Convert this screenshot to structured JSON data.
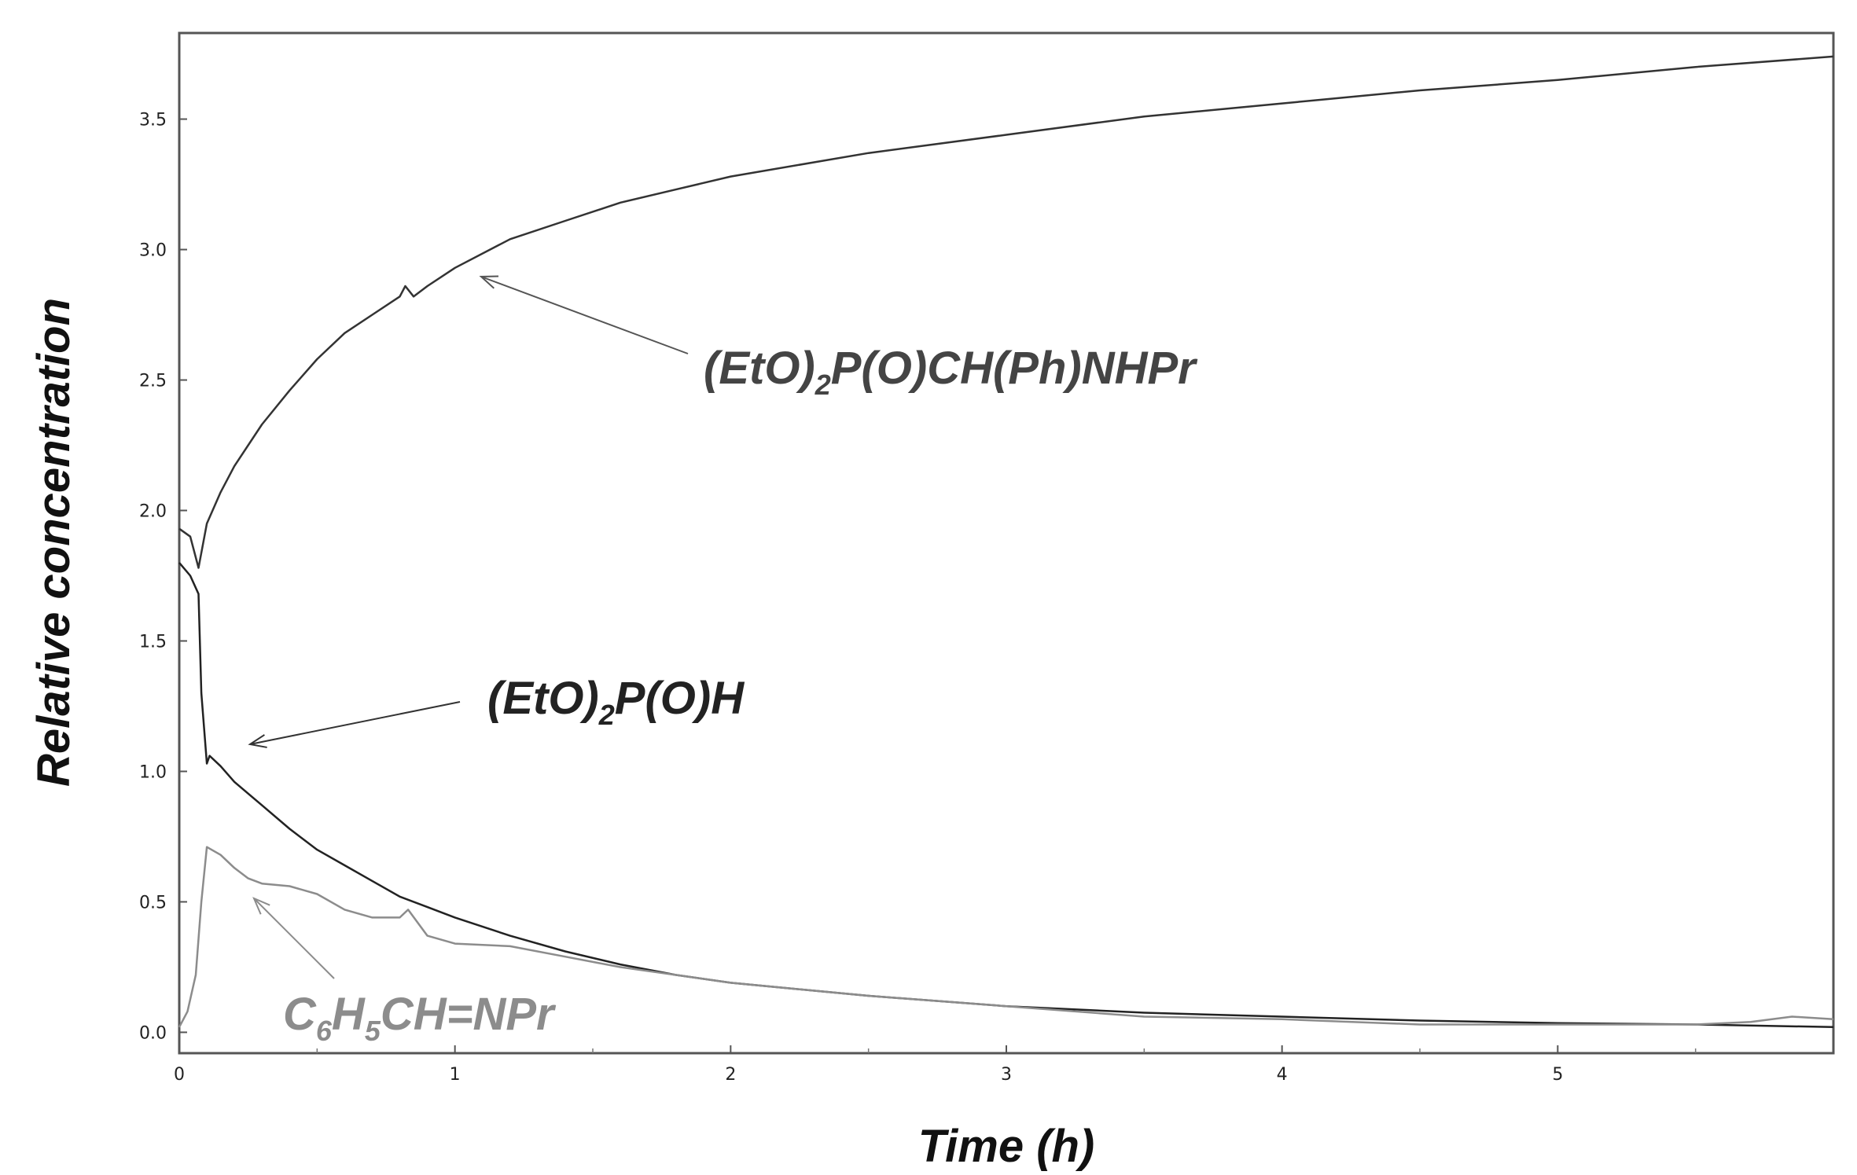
{
  "chart_data": {
    "type": "line",
    "xlabel": "Time (h)",
    "ylabel": "Relative concentration",
    "xlim": [
      0,
      6
    ],
    "ylim": [
      -0.08,
      3.83
    ],
    "xticks": [
      0,
      1,
      2,
      3,
      4,
      5
    ],
    "xtick_labels": [
      "0",
      "1",
      "2",
      "3",
      "4",
      "5"
    ],
    "yticks": [
      0.0,
      0.5,
      1.0,
      1.5,
      2.0,
      2.5,
      3.0,
      3.5
    ],
    "ytick_labels": [
      "0.0",
      "0.5",
      "1.0",
      "1.5",
      "2.0",
      "2.5",
      "3.0",
      "3.5"
    ],
    "grid": false,
    "series": [
      {
        "key": "product",
        "color": "#333333",
        "x": [
          0,
          0.04,
          0.07,
          0.1,
          0.15,
          0.2,
          0.3,
          0.4,
          0.5,
          0.6,
          0.7,
          0.8,
          0.82,
          0.85,
          0.9,
          1.0,
          1.2,
          1.4,
          1.6,
          1.8,
          2.0,
          2.5,
          3.0,
          3.5,
          4.0,
          4.5,
          5.0,
          5.5,
          6.0
        ],
        "y": [
          1.93,
          1.9,
          1.78,
          1.95,
          2.07,
          2.17,
          2.33,
          2.46,
          2.58,
          2.68,
          2.75,
          2.82,
          2.86,
          2.82,
          2.86,
          2.93,
          3.04,
          3.11,
          3.18,
          3.23,
          3.28,
          3.37,
          3.44,
          3.51,
          3.56,
          3.61,
          3.65,
          3.7,
          3.74
        ]
      },
      {
        "key": "phosphite",
        "color": "#222222",
        "x": [
          0,
          0.04,
          0.07,
          0.08,
          0.1,
          0.11,
          0.15,
          0.2,
          0.3,
          0.4,
          0.5,
          0.6,
          0.7,
          0.8,
          0.9,
          1.0,
          1.2,
          1.4,
          1.6,
          1.8,
          2.0,
          2.5,
          3.0,
          3.5,
          4.0,
          4.5,
          5.0,
          5.5,
          6.0
        ],
        "y": [
          1.8,
          1.75,
          1.68,
          1.3,
          1.03,
          1.06,
          1.02,
          0.96,
          0.87,
          0.78,
          0.7,
          0.64,
          0.58,
          0.52,
          0.48,
          0.44,
          0.37,
          0.31,
          0.26,
          0.22,
          0.19,
          0.14,
          0.1,
          0.075,
          0.06,
          0.045,
          0.035,
          0.03,
          0.02
        ]
      },
      {
        "key": "imine",
        "color": "#8c8c8c",
        "x": [
          0,
          0.03,
          0.06,
          0.08,
          0.1,
          0.15,
          0.2,
          0.25,
          0.3,
          0.4,
          0.5,
          0.6,
          0.7,
          0.8,
          0.83,
          0.9,
          1.0,
          1.2,
          1.4,
          1.6,
          1.8,
          2.0,
          2.5,
          3.0,
          3.5,
          4.0,
          4.5,
          5.0,
          5.5,
          5.7,
          5.85,
          6.0
        ],
        "y": [
          0.02,
          0.08,
          0.22,
          0.5,
          0.71,
          0.68,
          0.63,
          0.59,
          0.57,
          0.56,
          0.53,
          0.47,
          0.44,
          0.44,
          0.47,
          0.37,
          0.34,
          0.33,
          0.29,
          0.25,
          0.22,
          0.19,
          0.14,
          0.1,
          0.06,
          0.05,
          0.03,
          0.03,
          0.03,
          0.04,
          0.06,
          0.05
        ]
      }
    ],
    "annotations": [
      {
        "key": "product",
        "text_parts": [
          "(EtO)",
          "2",
          "P(O)CH(Ph)NHPr"
        ],
        "color": "#444444"
      },
      {
        "key": "phosphite",
        "text_parts": [
          "(EtO)",
          "2",
          "P(O)H"
        ],
        "color": "#222222"
      },
      {
        "key": "imine",
        "text_parts": [
          "C",
          "6",
          "H",
          "5",
          "CH=NPr"
        ],
        "color": "#8c8c8c"
      }
    ]
  }
}
